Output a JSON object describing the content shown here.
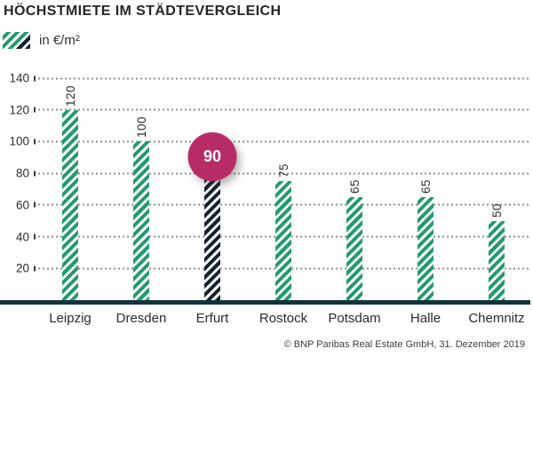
{
  "title": "HÖCHSTMIETE IM STÄDTEVERGLEICH",
  "legend": {
    "label": "in €/m²"
  },
  "footer": {
    "source": "© BNP Paribas Real Estate GmbH, 31. Dezember 2019"
  },
  "colors": {
    "bar_green": "#239a6f",
    "bar_dark": "#17222e",
    "badge_magenta": "#b72c67",
    "baseline": "#12333b"
  },
  "chart_data": {
    "type": "bar",
    "title": "HÖCHSTMIETE IM STÄDTEVERGLEICH",
    "unit_label": "in €/m²",
    "categories": [
      "Leipzig",
      "Dresden",
      "Erfurt",
      "Rostock",
      "Potsdam",
      "Halle",
      "Chemnitz"
    ],
    "values": [
      120,
      100,
      90,
      75,
      65,
      65,
      50
    ],
    "yticks": [
      20,
      40,
      60,
      80,
      100,
      120,
      140
    ],
    "ylim": [
      0,
      140
    ],
    "grid": "horizontal-dotted",
    "bar_style": "diagonal-stripes",
    "value_labels": "rotated-90-above-bars",
    "highlight": {
      "category": "Erfurt",
      "value": 90,
      "marker": "magenta-circle-badge",
      "bar_color": "dark-navy-stripes"
    },
    "source": "© BNP Paribas Real Estate GmbH, 31. Dezember 2019"
  }
}
